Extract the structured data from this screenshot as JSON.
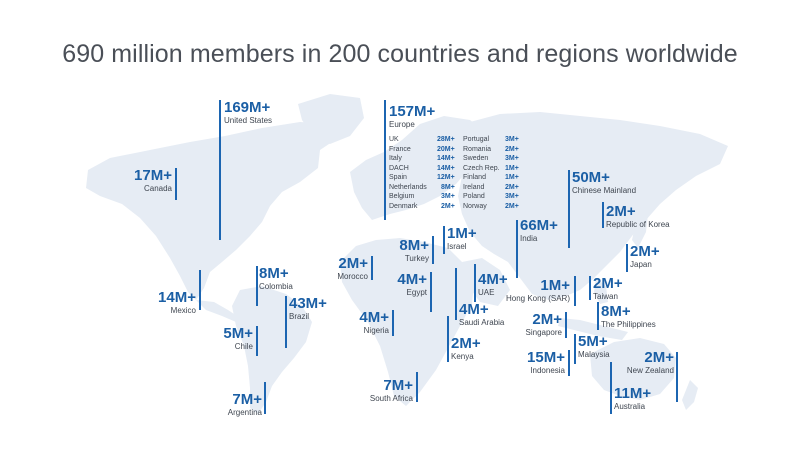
{
  "title": "690 million members in 200 countries and regions worldwide",
  "colors": {
    "accent": "#1b5fa5",
    "line": "#1c65b1",
    "land": "#e6ecf4",
    "text": "#3f4650"
  },
  "stats": {
    "us": {
      "value": "169M+",
      "label": "United States"
    },
    "canada": {
      "value": "17M+",
      "label": "Canada"
    },
    "mexico": {
      "value": "14M+",
      "label": "Mexico"
    },
    "colombia": {
      "value": "8M+",
      "label": "Colombia"
    },
    "brazil": {
      "value": "43M+",
      "label": "Brazil"
    },
    "chile": {
      "value": "5M+",
      "label": "Chile"
    },
    "argentina": {
      "value": "7M+",
      "label": "Argentina"
    },
    "europe": {
      "value": "157M+",
      "label": "Europe"
    },
    "morocco": {
      "value": "2M+",
      "label": "Morocco"
    },
    "turkey": {
      "value": "8M+",
      "label": "Turkey"
    },
    "israel": {
      "value": "1M+",
      "label": "Israel"
    },
    "egypt": {
      "value": "4M+",
      "label": "Egypt"
    },
    "nigeria": {
      "value": "4M+",
      "label": "Nigeria"
    },
    "uae": {
      "value": "4M+",
      "label": "UAE"
    },
    "saudi": {
      "value": "4M+",
      "label": "Saudi Arabia"
    },
    "kenya": {
      "value": "2M+",
      "label": "Kenya"
    },
    "south_africa": {
      "value": "7M+",
      "label": "South Africa"
    },
    "india": {
      "value": "66M+",
      "label": "India"
    },
    "china": {
      "value": "50M+",
      "label": "Chinese Mainland"
    },
    "korea": {
      "value": "2M+",
      "label": "Republic of Korea"
    },
    "japan": {
      "value": "2M+",
      "label": "Japan"
    },
    "hongkong": {
      "value": "1M+",
      "label": "Hong Kong (SAR)"
    },
    "taiwan": {
      "value": "2M+",
      "label": "Taiwan"
    },
    "philippines": {
      "value": "8M+",
      "label": "The Philippines"
    },
    "singapore": {
      "value": "2M+",
      "label": "Singapore"
    },
    "malaysia": {
      "value": "5M+",
      "label": "Malaysia"
    },
    "indonesia": {
      "value": "15M+",
      "label": "Indonesia"
    },
    "new_zealand": {
      "value": "2M+",
      "label": "New Zealand"
    },
    "australia": {
      "value": "11M+",
      "label": "Australia"
    }
  },
  "europe_breakdown": [
    {
      "name": "UK",
      "value": "28M+"
    },
    {
      "name": "France",
      "value": "20M+"
    },
    {
      "name": "Italy",
      "value": "14M+"
    },
    {
      "name": "DACH",
      "value": "14M+"
    },
    {
      "name": "Spain",
      "value": "12M+"
    },
    {
      "name": "Netherlands",
      "value": "8M+"
    },
    {
      "name": "Belgium",
      "value": "3M+"
    },
    {
      "name": "Denmark",
      "value": "2M+"
    },
    {
      "name": "Portugal",
      "value": "3M+"
    },
    {
      "name": "Romania",
      "value": "2M+"
    },
    {
      "name": "Sweden",
      "value": "3M+"
    },
    {
      "name": "Czech Rep.",
      "value": "1M+"
    },
    {
      "name": "Finland",
      "value": "1M+"
    },
    {
      "name": "Ireland",
      "value": "2M+"
    },
    {
      "name": "Poland",
      "value": "3M+"
    },
    {
      "name": "Norway",
      "value": "2M+"
    }
  ]
}
